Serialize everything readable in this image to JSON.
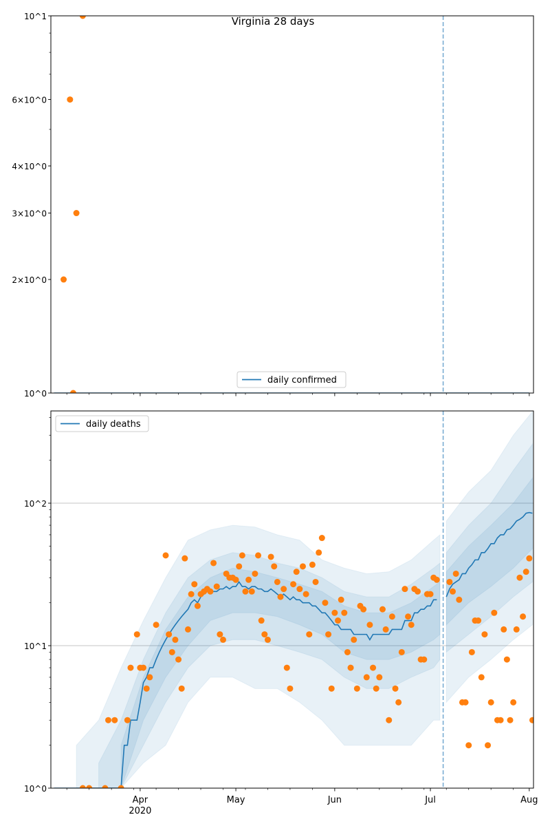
{
  "chart_data": [
    {
      "type": "scatter+line",
      "title": "Virginia 28 days",
      "yscale": "log",
      "ylim": [
        1,
        10
      ],
      "xlim": [
        "2020-03-04",
        "2020-08-02"
      ],
      "grid": false,
      "legend": {
        "placement": "lower-center",
        "entries": [
          "daily confirmed"
        ]
      },
      "yticks": [
        {
          "value": 1,
          "label": "10^0"
        },
        {
          "value": 2,
          "label": "2×10^0"
        },
        {
          "value": 3,
          "label": "3×10^0"
        },
        {
          "value": 4,
          "label": "4×10^0"
        },
        {
          "value": 6,
          "label": "6×10^0"
        },
        {
          "value": 10,
          "label": "10^1"
        }
      ],
      "forecast_line_date": "2020-07-05",
      "line": {
        "name": "daily confirmed",
        "segments": [
          {
            "start": "2020-03-05",
            "step_days": 1,
            "values": [
              1,
              1,
              1,
              1,
              1,
              1,
              1,
              1,
              1,
              1,
              1,
              1,
              1,
              1,
              1,
              1,
              1,
              1,
              1,
              1,
              1,
              1,
              1,
              1,
              1,
              1,
              1,
              1,
              1,
              1,
              1,
              1,
              1,
              1,
              1,
              1,
              1,
              1,
              1,
              1,
              1,
              1,
              1,
              1,
              1,
              1,
              1,
              1,
              1,
              1,
              1,
              1,
              1,
              1,
              1,
              1,
              1,
              1,
              1,
              1,
              1,
              1,
              1,
              1,
              1,
              1,
              1,
              1,
              1,
              1,
              1,
              1,
              1,
              1,
              1,
              1,
              1,
              1,
              1,
              1,
              1,
              1,
              1,
              1,
              1,
              1,
              1,
              1,
              1,
              1,
              1,
              1,
              1,
              1,
              1,
              1,
              1,
              1,
              1,
              1,
              1,
              1,
              1,
              1,
              1,
              1,
              1,
              1,
              1,
              1,
              1,
              1,
              1,
              1,
              1,
              1,
              1,
              1,
              1,
              1,
              1,
              1,
              1,
              1,
              1,
              1,
              1,
              1,
              1,
              1,
              1,
              1,
              1,
              1,
              1,
              1,
              1,
              1,
              1,
              1,
              1,
              1,
              1,
              1,
              1,
              1,
              1,
              1,
              1,
              1
            ]
          }
        ]
      },
      "points": {
        "dates": [
          "2020-03-08",
          "2020-03-10",
          "2020-03-11",
          "2020-03-12",
          "2020-03-14"
        ],
        "values": [
          2,
          6,
          1,
          3,
          10
        ]
      }
    },
    {
      "type": "scatter+line+bands",
      "yscale": "log",
      "ylim": [
        1,
        444
      ],
      "xlim": [
        "2020-03-04",
        "2020-08-02"
      ],
      "grid": "major-y",
      "legend": {
        "placement": "upper-left",
        "entries": [
          "daily deaths"
        ]
      },
      "yticks": [
        {
          "value": 1,
          "label": "10^0"
        },
        {
          "value": 10,
          "label": "10^1"
        },
        {
          "value": 100,
          "label": "10^2"
        }
      ],
      "xticks": [
        {
          "date": "2020-04-01",
          "label": "Apr",
          "sub": "2020"
        },
        {
          "date": "2020-05-01",
          "label": "May",
          "sub": ""
        },
        {
          "date": "2020-06-01",
          "label": "Jun",
          "sub": ""
        },
        {
          "date": "2020-07-01",
          "label": "Jul",
          "sub": ""
        },
        {
          "date": "2020-08-01",
          "label": "Aug",
          "sub": ""
        }
      ],
      "minor_xticks": [
        "2020-03-09",
        "2020-03-16",
        "2020-03-23",
        "2020-03-30",
        "2020-04-06",
        "2020-04-13",
        "2020-04-20",
        "2020-04-27",
        "2020-05-04",
        "2020-05-11",
        "2020-05-18",
        "2020-05-25",
        "2020-06-08",
        "2020-06-15",
        "2020-06-22",
        "2020-06-29",
        "2020-07-06",
        "2020-07-13",
        "2020-07-20",
        "2020-07-27"
      ],
      "forecast_line_date": "2020-07-05",
      "line": {
        "name": "daily deaths",
        "segments": [
          {
            "start": "2020-03-05",
            "step_days": 1,
            "values": [
              1,
              1,
              1,
              1,
              1,
              1,
              1,
              1,
              1,
              1,
              1,
              1,
              1,
              1,
              1,
              1,
              1,
              1,
              1,
              1,
              1,
              1,
              2,
              2,
              3,
              3,
              3,
              4,
              5.5,
              6,
              7,
              7,
              8,
              9,
              10,
              11,
              12,
              13,
              14,
              15,
              16,
              17,
              18,
              20,
              21,
              20,
              22,
              23,
              24,
              24,
              24,
              24,
              25,
              25,
              26,
              25,
              26,
              26,
              28,
              26,
              26,
              25,
              26,
              26,
              25,
              25,
              24,
              24,
              25,
              24,
              23,
              22,
              23,
              22,
              21,
              22,
              21,
              21,
              20,
              20,
              20,
              19,
              19,
              18,
              17,
              17,
              16,
              15,
              14,
              14,
              13,
              13,
              13,
              13,
              12,
              12,
              12,
              12,
              12,
              11,
              12,
              12,
              12,
              12,
              12,
              12,
              13,
              13,
              13,
              13,
              15,
              15,
              15,
              17,
              17,
              18,
              18,
              19,
              19,
              21,
              21
            ]
          },
          {
            "start": "2020-07-06",
            "step_days": 1,
            "values": [
              22,
              25,
              27,
              28,
              29,
              32,
              32,
              35,
              37,
              40,
              40,
              45,
              45,
              48,
              52,
              52,
              57,
              60,
              60,
              65,
              66,
              70,
              75,
              77,
              80,
              85,
              86,
              85
            ]
          }
        ]
      },
      "bands": [
        {
          "name": "outer",
          "segments": [
            {
              "dates": [
                "2020-03-12",
                "2020-03-19",
                "2020-03-26",
                "2020-04-02",
                "2020-04-09",
                "2020-04-16",
                "2020-04-23",
                "2020-04-30",
                "2020-05-07",
                "2020-05-14",
                "2020-05-21",
                "2020-05-28",
                "2020-06-04",
                "2020-06-11",
                "2020-06-18",
                "2020-06-25",
                "2020-07-02",
                "2020-07-04"
              ],
              "lo": [
                1,
                1,
                1,
                1.5,
                2,
                4,
                6,
                6,
                5,
                5,
                4,
                3,
                2,
                2,
                2,
                2,
                3,
                3
              ],
              "hi": [
                2,
                3,
                7,
                15,
                30,
                55,
                65,
                70,
                68,
                60,
                55,
                40,
                35,
                32,
                33,
                40,
                55,
                60
              ]
            },
            {
              "dates": [
                "2020-07-06",
                "2020-07-13",
                "2020-07-20",
                "2020-07-27",
                "2020-08-02"
              ],
              "lo": [
                4,
                6,
                8,
                11,
                14
              ],
              "hi": [
                75,
                120,
                170,
                300,
                440
              ]
            }
          ]
        },
        {
          "name": "middle",
          "segments": [
            {
              "dates": [
                "2020-03-19",
                "2020-03-26",
                "2020-04-02",
                "2020-04-09",
                "2020-04-16",
                "2020-04-23",
                "2020-04-30",
                "2020-05-07",
                "2020-05-14",
                "2020-05-21",
                "2020-05-28",
                "2020-06-04",
                "2020-06-11",
                "2020-06-18",
                "2020-06-25",
                "2020-07-02",
                "2020-07-04"
              ],
              "lo": [
                1,
                1,
                2,
                4,
                7,
                10,
                11,
                11,
                10,
                9,
                8,
                6,
                5,
                5,
                6,
                7,
                8
              ],
              "hi": [
                1.5,
                3,
                8,
                17,
                30,
                40,
                45,
                43,
                38,
                35,
                30,
                24,
                22,
                22,
                27,
                35,
                38
              ]
            },
            {
              "dates": [
                "2020-07-06",
                "2020-07-13",
                "2020-07-20",
                "2020-07-27",
                "2020-08-02"
              ],
              "lo": [
                9,
                12,
                16,
                22,
                28
              ],
              "hi": [
                45,
                70,
                100,
                170,
                260
              ]
            }
          ]
        },
        {
          "name": "inner",
          "segments": [
            {
              "dates": [
                "2020-03-26",
                "2020-04-02",
                "2020-04-09",
                "2020-04-16",
                "2020-04-23",
                "2020-04-30",
                "2020-05-07",
                "2020-05-14",
                "2020-05-21",
                "2020-05-28",
                "2020-06-04",
                "2020-06-11",
                "2020-06-18",
                "2020-06-25",
                "2020-07-02",
                "2020-07-04"
              ],
              "lo": [
                1,
                3,
                6,
                10,
                15,
                17,
                17,
                16,
                14,
                12,
                9,
                8,
                8,
                9,
                11,
                12
              ],
              "hi": [
                2,
                6,
                13,
                22,
                30,
                35,
                33,
                30,
                27,
                24,
                19,
                17,
                17,
                20,
                26,
                28
              ]
            },
            {
              "dates": [
                "2020-07-06",
                "2020-07-13",
                "2020-07-20",
                "2020-07-27",
                "2020-08-02"
              ],
              "lo": [
                14,
                20,
                26,
                35,
                48
              ],
              "hi": [
                33,
                50,
                70,
                100,
                150
              ]
            }
          ]
        }
      ],
      "points": {
        "dates": [
          "2020-03-14",
          "2020-03-16",
          "2020-03-21",
          "2020-03-22",
          "2020-03-24",
          "2020-03-26",
          "2020-03-28",
          "2020-03-29",
          "2020-03-31",
          "2020-04-01",
          "2020-04-02",
          "2020-04-03",
          "2020-04-04",
          "2020-04-06",
          "2020-04-09",
          "2020-04-10",
          "2020-04-11",
          "2020-04-12",
          "2020-04-13",
          "2020-04-14",
          "2020-04-15",
          "2020-04-16",
          "2020-04-17",
          "2020-04-18",
          "2020-04-19",
          "2020-04-20",
          "2020-04-21",
          "2020-04-22",
          "2020-04-23",
          "2020-04-24",
          "2020-04-25",
          "2020-04-26",
          "2020-04-27",
          "2020-04-28",
          "2020-04-29",
          "2020-04-30",
          "2020-05-01",
          "2020-05-02",
          "2020-05-03",
          "2020-05-04",
          "2020-05-05",
          "2020-05-06",
          "2020-05-07",
          "2020-05-08",
          "2020-05-09",
          "2020-05-10",
          "2020-05-11",
          "2020-05-12",
          "2020-05-13",
          "2020-05-14",
          "2020-05-15",
          "2020-05-16",
          "2020-05-17",
          "2020-05-18",
          "2020-05-19",
          "2020-05-20",
          "2020-05-21",
          "2020-05-22",
          "2020-05-23",
          "2020-05-24",
          "2020-05-25",
          "2020-05-26",
          "2020-05-27",
          "2020-05-28",
          "2020-05-29",
          "2020-05-30",
          "2020-05-31",
          "2020-06-01",
          "2020-06-02",
          "2020-06-03",
          "2020-06-04",
          "2020-06-05",
          "2020-06-06",
          "2020-06-07",
          "2020-06-08",
          "2020-06-09",
          "2020-06-10",
          "2020-06-11",
          "2020-06-12",
          "2020-06-13",
          "2020-06-14",
          "2020-06-15",
          "2020-06-16",
          "2020-06-17",
          "2020-06-18",
          "2020-06-19",
          "2020-06-20",
          "2020-06-21",
          "2020-06-22",
          "2020-06-23",
          "2020-06-24",
          "2020-06-25",
          "2020-06-26",
          "2020-06-27",
          "2020-06-28",
          "2020-06-29",
          "2020-06-30",
          "2020-07-01",
          "2020-07-02",
          "2020-07-03",
          "2020-07-07",
          "2020-07-08",
          "2020-07-09",
          "2020-07-10",
          "2020-07-11",
          "2020-07-12",
          "2020-07-13",
          "2020-07-14",
          "2020-07-15",
          "2020-07-16",
          "2020-07-17",
          "2020-07-18",
          "2020-07-19",
          "2020-07-20",
          "2020-07-21",
          "2020-07-22",
          "2020-07-23",
          "2020-07-24",
          "2020-07-25",
          "2020-07-26",
          "2020-07-27",
          "2020-07-28",
          "2020-07-29",
          "2020-07-30",
          "2020-07-31",
          "2020-08-01",
          "2020-08-02"
        ],
        "values": [
          1,
          1,
          1,
          3,
          3,
          1,
          3,
          7,
          12,
          7,
          7,
          5,
          6,
          14,
          43,
          12,
          9,
          11,
          8,
          5,
          41,
          13,
          23,
          27,
          19,
          23,
          24,
          25,
          24,
          38,
          26,
          12,
          11,
          32,
          30,
          30,
          29,
          36,
          43,
          24,
          29,
          24,
          32,
          43,
          15,
          12,
          11,
          42,
          36,
          28,
          22,
          25,
          7,
          5,
          27,
          33,
          25,
          36,
          23,
          12,
          37,
          28,
          45,
          57,
          20,
          12,
          5,
          17,
          15,
          21,
          17,
          9,
          7,
          11,
          5,
          19,
          18,
          6,
          14,
          7,
          5,
          6,
          18,
          13,
          3,
          16,
          5,
          4,
          9,
          25,
          16,
          14,
          25,
          24,
          8,
          8,
          23,
          23,
          30,
          29,
          28,
          24,
          32,
          21,
          4,
          4,
          2,
          9,
          15,
          15,
          6,
          12,
          2,
          4,
          17,
          3,
          3,
          13,
          8,
          3,
          4,
          13,
          30,
          16,
          33,
          41,
          3
        ]
      }
    }
  ],
  "colors": {
    "line": "#1f77b4",
    "points": "#ff7f0e",
    "band": "#1f77b4",
    "grid": "#b0b0b0"
  }
}
